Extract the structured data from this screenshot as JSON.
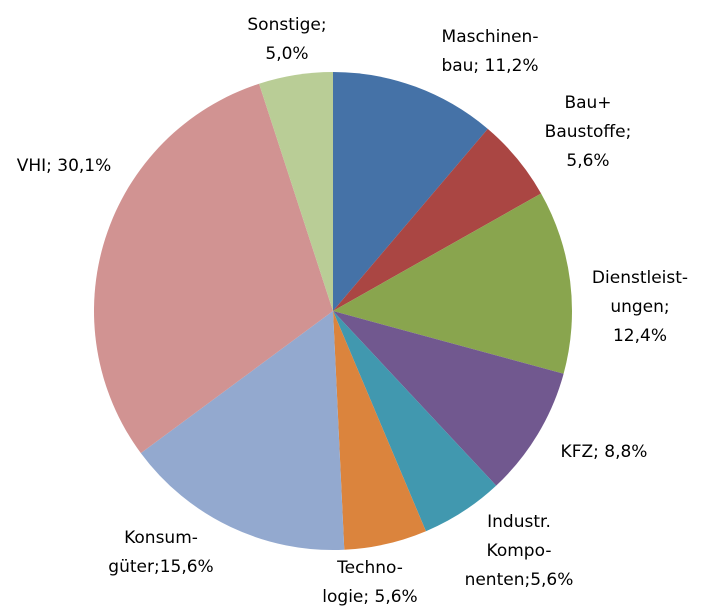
{
  "chart_data": {
    "type": "pie",
    "values": [
      11.2,
      5.6,
      12.4,
      8.8,
      5.6,
      5.6,
      15.6,
      30.1,
      5.0
    ],
    "value_labels": [
      [
        "Maschinen-",
        "bau; 11,2%"
      ],
      [
        "Bau+",
        "Baustoffe;",
        "5,6%"
      ],
      [
        "Dienstleist-",
        "ungen;",
        "12,4%"
      ],
      [
        "KFZ; 8,8%"
      ],
      [
        "Industr.",
        "Kompo-",
        "nenten;5,6%"
      ],
      [
        "Techno-",
        "logie; 5,6%"
      ],
      [
        "Konsum-",
        "güter;15,6%"
      ],
      [
        "VHI; 30,1%"
      ],
      [
        "Sonstige;",
        "5,0%"
      ]
    ],
    "colors": [
      "#4572a7",
      "#aa4643",
      "#89a54e",
      "#71588f",
      "#4198af",
      "#db843d",
      "#93a9cf",
      "#d19392",
      "#b9cd96"
    ]
  }
}
